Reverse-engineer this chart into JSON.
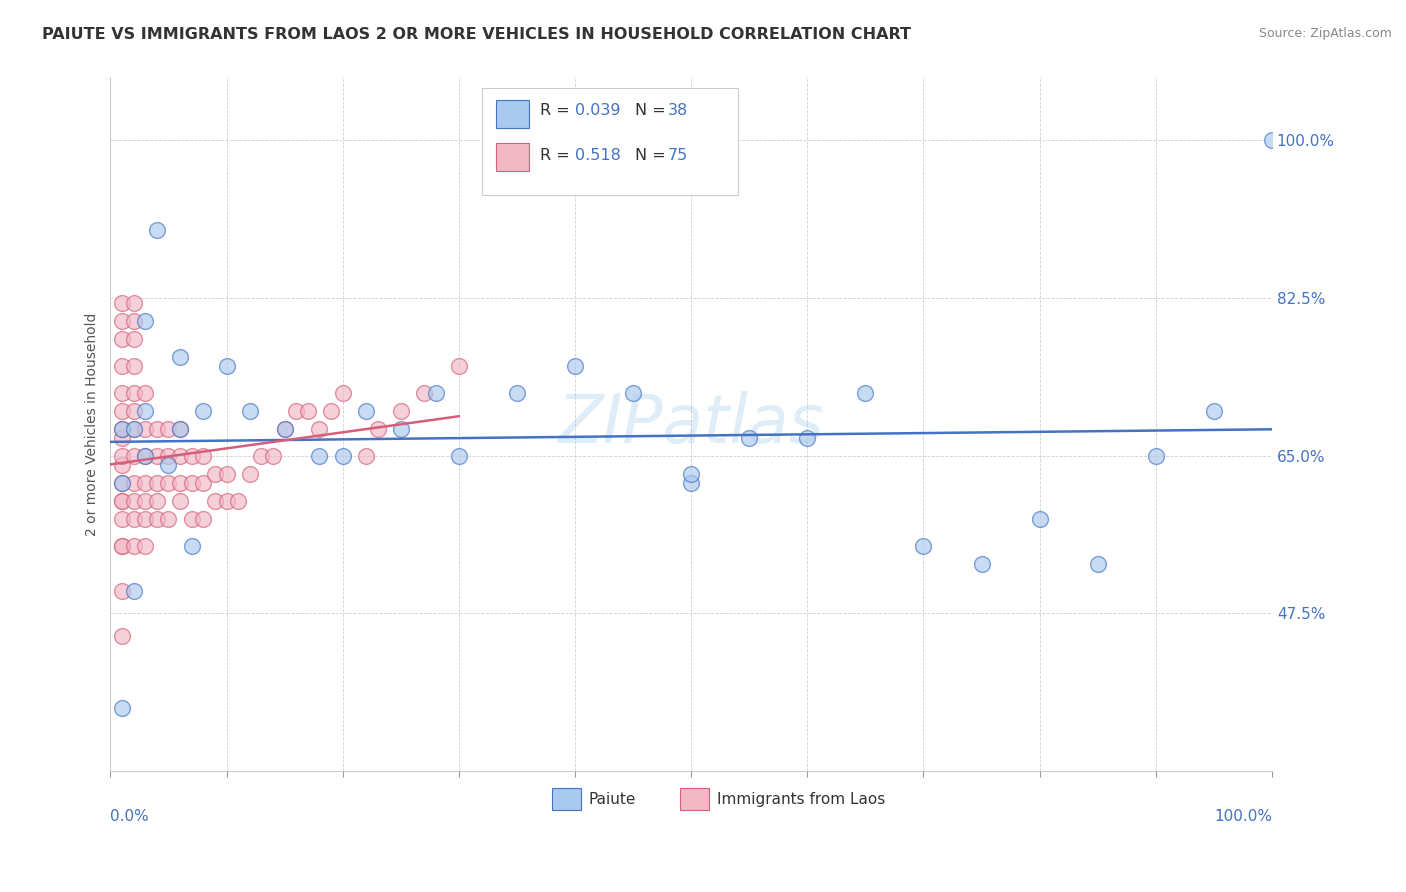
{
  "title": "PAIUTE VS IMMIGRANTS FROM LAOS 2 OR MORE VEHICLES IN HOUSEHOLD CORRELATION CHART",
  "source": "Source: ZipAtlas.com",
  "ylabel": "2 or more Vehicles in Household",
  "xlim": [
    0,
    100
  ],
  "ylim": [
    30,
    107
  ],
  "yticks": [
    47.5,
    65.0,
    82.5,
    100.0
  ],
  "ytick_labels": [
    "47.5%",
    "65.0%",
    "82.5%",
    "100.0%"
  ],
  "color_blue": "#aac9ee",
  "color_pink": "#f2b8c6",
  "line_blue": "#4472c4",
  "line_pink": "#d45f7a",
  "watermark": "ZIPatlas",
  "paiute_x": [
    1,
    2,
    3,
    4,
    1,
    1,
    2,
    3,
    5,
    6,
    7,
    8,
    10,
    12,
    15,
    18,
    20,
    22,
    25,
    28,
    30,
    35,
    40,
    45,
    50,
    55,
    60,
    65,
    70,
    75,
    80,
    85,
    90,
    95,
    100,
    6,
    3,
    50
  ],
  "paiute_y": [
    37,
    50,
    80,
    90,
    62,
    68,
    68,
    65,
    64,
    68,
    55,
    70,
    75,
    70,
    68,
    65,
    65,
    70,
    68,
    72,
    65,
    72,
    75,
    72,
    62,
    67,
    67,
    72,
    55,
    53,
    58,
    53,
    65,
    70,
    100,
    76,
    70,
    63
  ],
  "laos_x": [
    1,
    1,
    1,
    1,
    1,
    1,
    1,
    1,
    1,
    1,
    1,
    1,
    1,
    1,
    1,
    1,
    1,
    1,
    2,
    2,
    2,
    2,
    2,
    2,
    2,
    2,
    2,
    2,
    2,
    2,
    3,
    3,
    3,
    3,
    3,
    3,
    3,
    4,
    4,
    4,
    4,
    4,
    5,
    5,
    5,
    5,
    6,
    6,
    6,
    6,
    7,
    7,
    7,
    8,
    8,
    8,
    9,
    9,
    10,
    10,
    11,
    12,
    13,
    14,
    15,
    16,
    17,
    18,
    19,
    20,
    22,
    23,
    25,
    27,
    30
  ],
  "laos_y": [
    45,
    50,
    55,
    58,
    60,
    62,
    64,
    65,
    67,
    68,
    70,
    72,
    75,
    78,
    80,
    82,
    55,
    60,
    55,
    58,
    60,
    62,
    65,
    68,
    70,
    72,
    75,
    78,
    80,
    82,
    55,
    58,
    60,
    62,
    65,
    68,
    72,
    58,
    60,
    62,
    65,
    68,
    58,
    62,
    65,
    68,
    60,
    62,
    65,
    68,
    58,
    62,
    65,
    58,
    62,
    65,
    60,
    63,
    60,
    63,
    60,
    63,
    65,
    65,
    68,
    70,
    70,
    68,
    70,
    72,
    65,
    68,
    70,
    72,
    75
  ]
}
